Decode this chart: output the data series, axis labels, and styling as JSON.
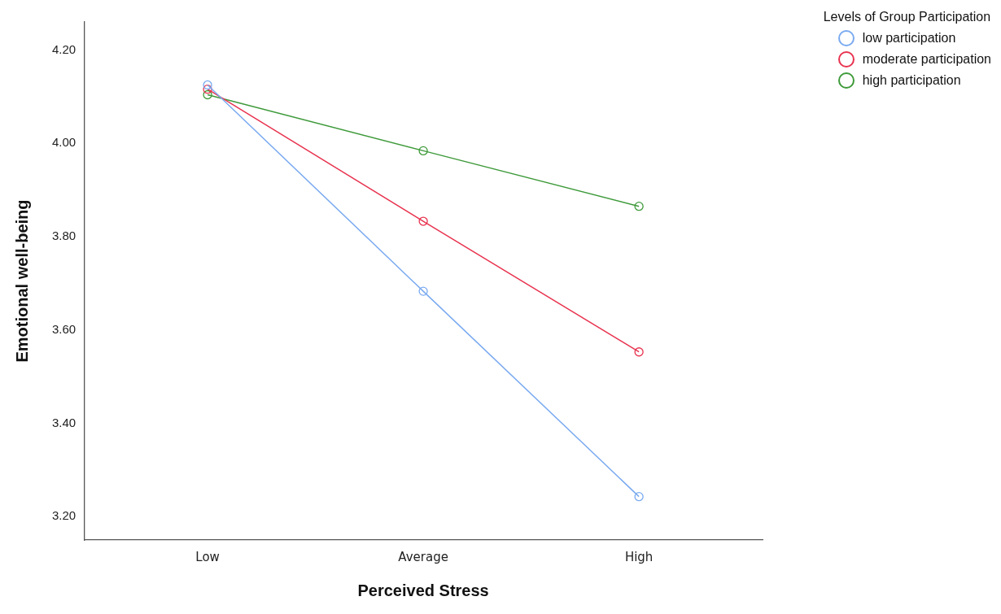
{
  "chart_data": {
    "type": "line",
    "xlabel": "Perceived Stress",
    "ylabel": "Emotional well-being",
    "legend_title": "Levels of Group Participation",
    "categories": [
      "Low",
      "Average",
      "High"
    ],
    "series": [
      {
        "name": "low participation",
        "color": "#7aaaf0",
        "values": [
          4.125,
          3.683,
          3.243
        ]
      },
      {
        "name": "moderate participation",
        "color": "#e8334f",
        "values": [
          4.116,
          3.833,
          3.553
        ]
      },
      {
        "name": "high participation",
        "color": "#3e9a3a",
        "values": [
          4.104,
          3.984,
          3.865
        ]
      }
    ],
    "ylim": [
      3.15,
      4.26
    ],
    "yticks": [
      {
        "value": 3.2,
        "label": "3.20"
      },
      {
        "value": 3.4,
        "label": "3.40"
      },
      {
        "value": 3.6,
        "label": "3.60"
      },
      {
        "value": 3.8,
        "label": "3.80"
      },
      {
        "value": 4.0,
        "label": "4.00"
      },
      {
        "value": 4.2,
        "label": "4.20"
      }
    ],
    "grid": false,
    "legend": "top right",
    "marker": "circle",
    "line_style": "solid"
  }
}
